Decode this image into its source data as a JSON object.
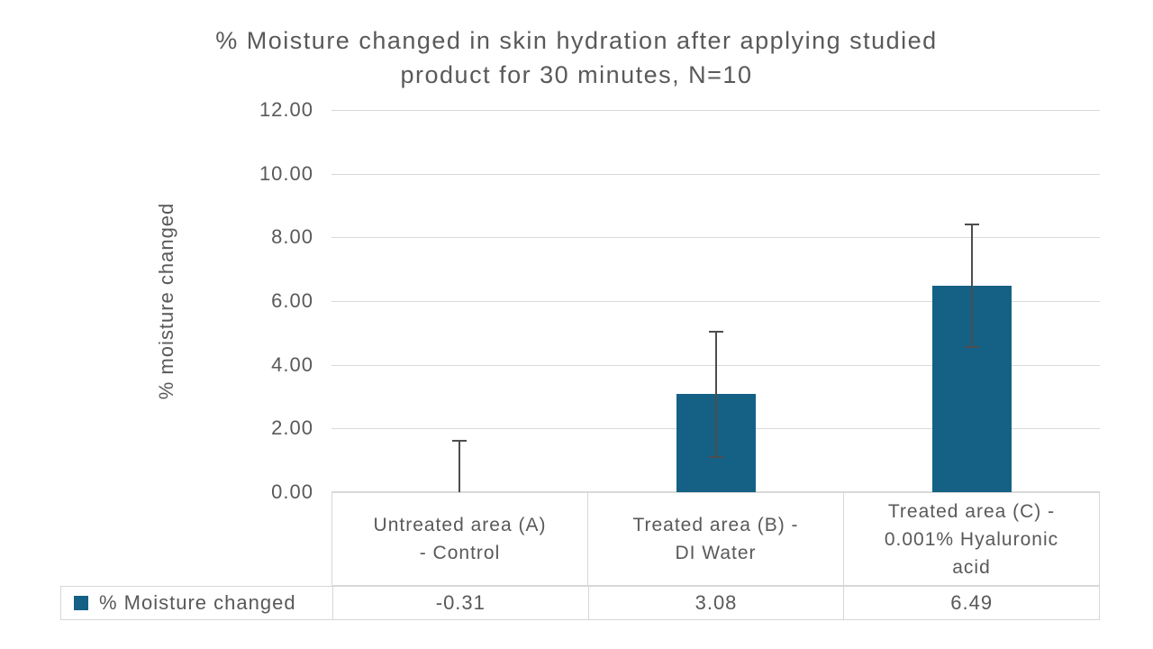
{
  "title": "% Moisture changed in skin hydration after applying studied product for 30 minutes, N=10",
  "y_axis": {
    "label": "% moisture changed",
    "tick_labels": [
      "12.00",
      "10.00",
      "8.00",
      "6.00",
      "4.00",
      "2.00",
      "0.00"
    ]
  },
  "legend": {
    "label": "% Moisture changed"
  },
  "chart_data": {
    "type": "bar",
    "title": "% Moisture changed in skin hydration after applying studied product for 30 minutes, N=10",
    "categories": [
      "Untreated area (A) - Control",
      "Treated area (B) - DI Water",
      "Treated area (C) - 0.001% Hyaluronic acid"
    ],
    "series": [
      {
        "name": "% Moisture changed",
        "values": [
          -0.31,
          3.08,
          6.49
        ],
        "errors_plus_minus": [
          1.95,
          2.0,
          1.95
        ]
      }
    ],
    "xlabel": "",
    "ylabel": "% moisture changed",
    "ylim": [
      0,
      12
    ],
    "yticks": [
      0,
      2,
      4,
      6,
      8,
      10,
      12
    ],
    "grid": true,
    "legend_position": "bottom-data-table",
    "colors": {
      "bar": "#156185",
      "gridline": "#d9d9d9",
      "error_bar": "#4d4d4d",
      "text": "#595959",
      "table_border": "#d7d7d7"
    }
  }
}
